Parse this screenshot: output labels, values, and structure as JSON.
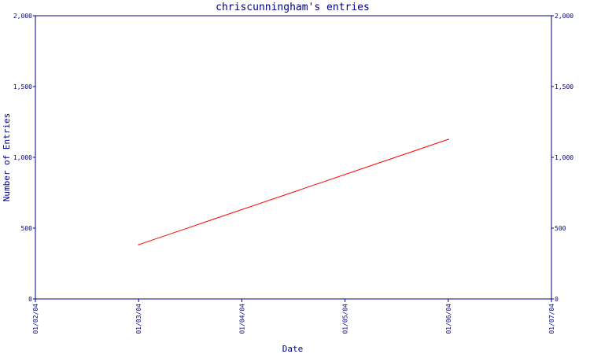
{
  "chart_data": {
    "type": "line",
    "title": "chriscunningham's entries",
    "xlabel": "Date",
    "ylabel": "Number of Entries",
    "x_ticks": [
      "01/02/04",
      "01/03/04",
      "01/04/04",
      "01/05/04",
      "01/06/04",
      "01/07/04"
    ],
    "xlim": [
      "01/02/04",
      "01/07/04"
    ],
    "ylim": [
      0,
      2000
    ],
    "y_ticks": [
      0,
      500,
      1000,
      1500,
      2000
    ],
    "y_tick_labels": [
      "0",
      "500",
      "1,000",
      "1,500",
      "2,000"
    ],
    "y_axis_both_sides": true,
    "grid": false,
    "series": [
      {
        "x": [
          "01/03/04",
          "01/06/04"
        ],
        "y": [
          383,
          1127
        ],
        "color": "#ff0000"
      }
    ]
  },
  "colors": {
    "axis": "#000080",
    "line": "#ff0000",
    "background": "#ffffff"
  }
}
